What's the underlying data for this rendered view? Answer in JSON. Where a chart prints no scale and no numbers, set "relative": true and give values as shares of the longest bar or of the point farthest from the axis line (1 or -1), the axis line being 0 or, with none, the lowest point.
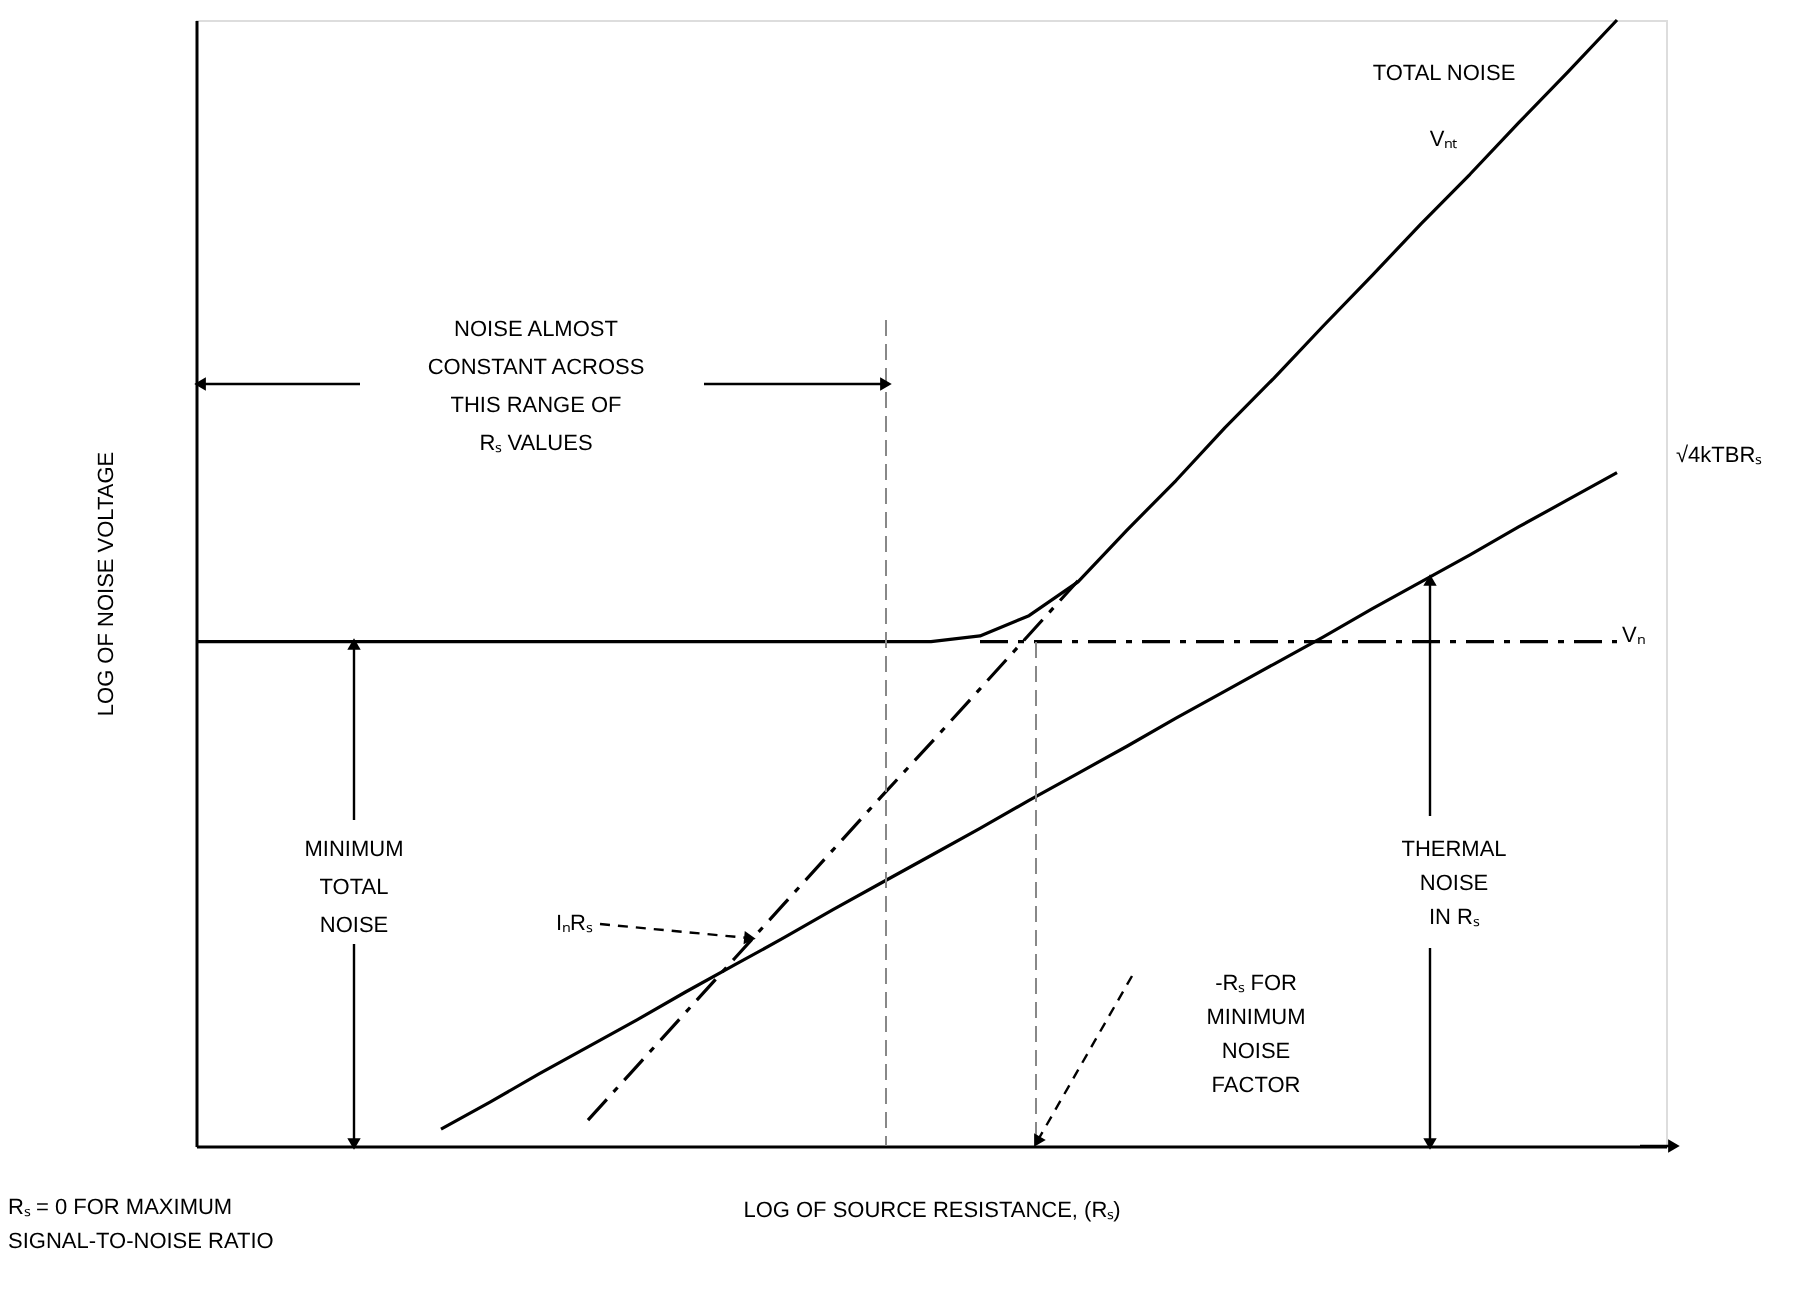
{
  "chart_data": {
    "type": "line",
    "relative": true,
    "xlabel": "LOG OF SOURCE RESISTANCE, (Rₛ)",
    "ylabel": "LOG OF NOISE VOLTAGE",
    "categories": [
      null,
      null,
      null,
      null,
      null,
      null,
      null,
      null,
      null,
      null,
      null,
      null,
      null,
      null,
      null,
      null,
      null,
      null,
      null,
      null,
      null,
      null,
      null,
      null,
      null,
      null,
      null,
      null,
      null,
      null,
      null
    ],
    "series": [
      {
        "name": "TOTAL NOISE",
        "color": "#000000",
        "line_style": "solid",
        "values": [
          0.448,
          0.448,
          0.448,
          0.448,
          0.448,
          0.448,
          0.448,
          0.448,
          0.448,
          0.448,
          0.448,
          0.448,
          0.448,
          0.448,
          0.448,
          0.448,
          0.453,
          0.471,
          0.501,
          0.547,
          0.591,
          0.638,
          0.682,
          0.728,
          0.773,
          0.819,
          0.863,
          0.909,
          0.954,
          1.0,
          null
        ]
      },
      {
        "name": "√4kTBRₛ",
        "color": "#000000",
        "line_style": "solid",
        "values": [
          null,
          null,
          null,
          null,
          null,
          0.015,
          0.039,
          0.064,
          0.088,
          0.112,
          0.137,
          0.161,
          0.185,
          0.21,
          0.234,
          0.258,
          0.282,
          0.307,
          0.331,
          0.355,
          0.38,
          0.404,
          0.428,
          0.452,
          0.477,
          0.501,
          0.525,
          0.55,
          0.574,
          0.598,
          null
        ]
      },
      {
        "name": "Vₙ",
        "color": "#000000",
        "line_style": "dashed",
        "values": [
          null,
          null,
          null,
          null,
          null,
          null,
          null,
          null,
          null,
          null,
          null,
          null,
          null,
          null,
          null,
          null,
          0.448,
          0.448,
          0.448,
          0.448,
          0.448,
          0.448,
          0.448,
          0.448,
          0.448,
          0.448,
          0.448,
          0.448,
          0.448,
          0.448,
          null
        ]
      },
      {
        "color": "#000000",
        "line_style": "dashed",
        "values": [
          null,
          null,
          null,
          null,
          null,
          null,
          null,
          null,
          0.023,
          0.071,
          0.119,
          0.167,
          0.215,
          0.263,
          0.311,
          0.358,
          0.406,
          0.454,
          0.502,
          null,
          null,
          null,
          null,
          null,
          null,
          null,
          null,
          null,
          null,
          null,
          null
        ]
      }
    ],
    "annotations": [
      "Vₙₜ",
      "IₙRₛ",
      "NOISE ALMOST\nCONSTANT ACROSS\nTHIS RANGE OF\nRₛ VALUES",
      "MINIMUM\nTOTAL\nNOISE",
      "THERMAL\nNOISE\nIN Rₛ",
      "-Rₛ FOR\nMINIMUM\nNOISE\nFACTOR",
      "Rₛ = 0 FOR MAXIMUM\nSIGNAL-TO-NOISE RATIO"
    ]
  }
}
